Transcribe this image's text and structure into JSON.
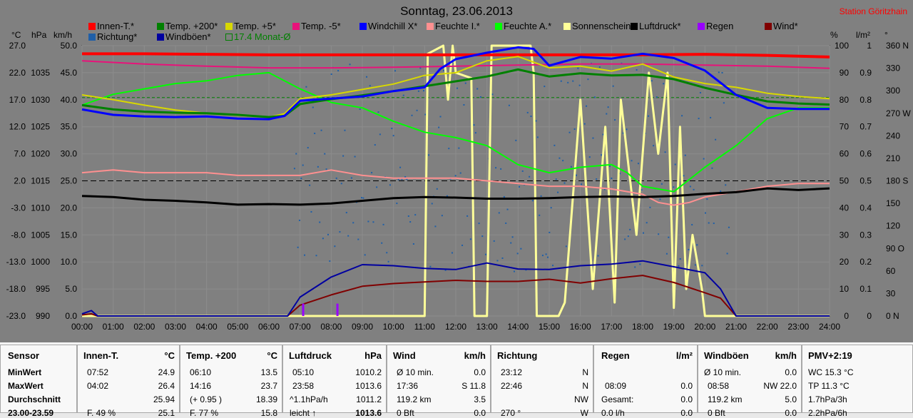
{
  "header": {
    "title": "Sonntag, 23.06.2013",
    "station": "Station Göritzhain"
  },
  "colors": {
    "innen": "#ff0000",
    "t200": "#008000",
    "t5": "#d8d800",
    "tm5": "#e8127a",
    "windchill": "#0000ff",
    "feuchte_i": "#ff9090",
    "feuchte_a": "#00ff00",
    "sonne": "#ffff99",
    "luftdruck": "#000000",
    "regen": "#9900ff",
    "wind": "#800000",
    "richtung": "#1f5fa8",
    "boeen": "#0000a0",
    "monat": "#008000"
  },
  "legend": [
    {
      "label": "Innen-T.*",
      "color": "#ff0000"
    },
    {
      "label": "Temp. +200*",
      "color": "#008000"
    },
    {
      "label": "Temp. +5*",
      "color": "#d8d800"
    },
    {
      "label": "Temp. -5*",
      "color": "#e8127a"
    },
    {
      "label": "Windchill X*",
      "color": "#0000ff"
    },
    {
      "label": "Feuchte I.*",
      "color": "#ff9090"
    },
    {
      "label": "Feuchte A.*",
      "color": "#00ff00"
    },
    {
      "label": "Sonnenschein",
      "color": "#ffff99"
    },
    {
      "label": "Luftdruck*",
      "color": "#000000"
    },
    {
      "label": "Regen",
      "color": "#9900ff"
    },
    {
      "label": "Wind*",
      "color": "#800000"
    },
    {
      "label": "Richtung*",
      "color": "#1f5fa8"
    },
    {
      "label": "Windböen*",
      "color": "#0000a0"
    },
    {
      "label": "17.4 Monat-Ø",
      "color": "#008000"
    }
  ],
  "units": {
    "celsius": "°C",
    "hpa": "hPa",
    "kmh": "km/h",
    "percent": "%",
    "lm2": "l/m²",
    "deg": "°"
  },
  "chart_data": {
    "type": "line",
    "x_ticks": [
      "00:00",
      "01:00",
      "02:00",
      "03:00",
      "04:00",
      "05:00",
      "06:00",
      "07:00",
      "08:00",
      "09:00",
      "10:00",
      "11:00",
      "12:00",
      "13:00",
      "14:00",
      "15:00",
      "16:00",
      "17:00",
      "18:00",
      "19:00",
      "20:00",
      "21:00",
      "22:00",
      "23:00",
      "24:00"
    ],
    "axes": {
      "temp": {
        "label": "°C",
        "ticks": [
          "27.0",
          "22.0",
          "17.0",
          "12.0",
          "7.0",
          "2.0",
          "-3.0",
          "-8.0",
          "-13.0",
          "-18.0",
          "-23.0"
        ],
        "range": [
          -23,
          27
        ]
      },
      "pressure": {
        "label": "hPa",
        "ticks": [
          "1035",
          "1030",
          "1025",
          "1020",
          "1015",
          "1010",
          "1005",
          "1000",
          "995",
          "990"
        ],
        "range": [
          990,
          1040
        ]
      },
      "wind": {
        "label": "km/h",
        "ticks": [
          "50.0",
          "45.0",
          "40.0",
          "35.0",
          "30.0",
          "25.0",
          "20.0",
          "15.0",
          "10.0",
          "5.0",
          "0.0"
        ],
        "range": [
          0,
          50
        ]
      },
      "humidity": {
        "label": "%",
        "ticks": [
          "100",
          "90",
          "80",
          "70",
          "60",
          "50",
          "40",
          "30",
          "20",
          "10",
          "0"
        ],
        "range": [
          0,
          100
        ]
      },
      "rain": {
        "label": "l/m²",
        "ticks": [
          "1",
          "0.9",
          "0.8",
          "0.7",
          "0.6",
          "0.5",
          "0.4",
          "0.3",
          "0.2",
          "0.1",
          "0"
        ],
        "range": [
          0,
          1
        ]
      },
      "direction": {
        "label": "°",
        "ticks": [
          "360 N",
          "330",
          "300",
          "270 W",
          "240",
          "210",
          "180 S",
          "150",
          "120",
          "90 O",
          "60",
          "30",
          "0 N"
        ],
        "range": [
          0,
          360
        ]
      }
    },
    "series": [
      {
        "name": "Innen-T.*",
        "axis": "temp",
        "x": [
          0,
          2,
          4,
          6,
          8,
          10,
          12,
          14,
          16,
          18,
          20,
          22,
          24
        ],
        "y": [
          25.5,
          25.5,
          25.4,
          25.3,
          25.3,
          25.3,
          25.3,
          25.3,
          25.3,
          25.3,
          25.4,
          25.2,
          24.9
        ]
      },
      {
        "name": "Temp. -5*",
        "axis": "temp",
        "x": [
          0,
          2,
          4,
          6,
          8,
          10,
          12,
          14,
          16,
          18,
          20,
          22,
          24
        ],
        "y": [
          24.2,
          23.6,
          23.2,
          22.9,
          22.9,
          23.0,
          23.2,
          23.4,
          23.6,
          23.6,
          23.4,
          23.2,
          22.8
        ]
      },
      {
        "name": "Temp. +200*",
        "axis": "temp",
        "x": [
          0,
          1,
          2,
          3,
          4,
          5,
          6,
          6.5,
          7,
          8,
          9,
          10,
          11,
          12,
          13,
          14,
          15,
          16,
          17,
          18,
          19,
          20,
          21,
          22,
          23,
          24
        ],
        "y": [
          16.0,
          15.2,
          14.8,
          14.6,
          14.5,
          14.2,
          13.8,
          14.0,
          16.2,
          17.1,
          17.8,
          18.6,
          19.5,
          20.4,
          21.3,
          22.6,
          21.3,
          21.9,
          21.5,
          21.6,
          20.8,
          19.2,
          17.9,
          16.7,
          16.3,
          16.1
        ]
      },
      {
        "name": "Temp. +5*",
        "axis": "temp",
        "x": [
          0,
          1,
          2,
          3,
          4,
          5,
          6,
          6.5,
          7,
          8,
          9,
          10,
          11,
          12,
          13,
          14,
          15,
          16,
          17,
          18,
          19,
          20,
          21,
          22,
          23,
          24
        ],
        "y": [
          17.9,
          17.0,
          16.0,
          15.1,
          14.5,
          14.1,
          13.8,
          14.4,
          17.2,
          17.9,
          18.9,
          19.9,
          21.5,
          22.0,
          24.2,
          25.0,
          22.9,
          23.2,
          22.3,
          23.6,
          21.2,
          20.0,
          19.3,
          18.2,
          17.6,
          17.2
        ]
      },
      {
        "name": "Windchill X*",
        "axis": "temp",
        "x": [
          0,
          1,
          2,
          3,
          4,
          5,
          6,
          6.5,
          7,
          8,
          9,
          10,
          11,
          11.5,
          12,
          13,
          14,
          14.5,
          15,
          16,
          17,
          18,
          19,
          20,
          21,
          22,
          23,
          24
        ],
        "y": [
          15.2,
          14.2,
          13.9,
          13.8,
          13.9,
          13.5,
          13.4,
          14.0,
          16.8,
          17.2,
          17.6,
          18.6,
          19.3,
          22.7,
          24.5,
          25.7,
          26.7,
          26.4,
          23.3,
          24.9,
          24.6,
          25.5,
          24.7,
          22.4,
          17.9,
          15.5,
          15.3,
          15.3
        ]
      },
      {
        "name": "Feuchte I.*",
        "axis": "humidity",
        "x": [
          0,
          1,
          2,
          3,
          4,
          5,
          6,
          7,
          8,
          9,
          10,
          11,
          12,
          13,
          14,
          15,
          16,
          17,
          18,
          18.5,
          19,
          19.5,
          20,
          21,
          22,
          23,
          24
        ],
        "y": [
          53,
          54,
          53,
          53,
          53,
          52,
          52,
          52,
          54,
          52,
          51,
          51,
          51,
          50,
          49,
          48,
          48,
          47,
          45,
          42,
          41,
          42,
          44,
          46,
          48,
          49,
          49
        ]
      },
      {
        "name": "Feuchte A.*",
        "axis": "humidity",
        "x": [
          0,
          1,
          2,
          3,
          4,
          5,
          6,
          7,
          8,
          9,
          10,
          11,
          12,
          13,
          14,
          15,
          16,
          17,
          17.5,
          18,
          18.5,
          19,
          20,
          21,
          22,
          23,
          24
        ],
        "y": [
          78,
          82,
          84,
          86,
          87,
          89,
          90,
          84,
          79,
          77,
          72,
          68,
          66,
          63,
          56,
          53,
          55,
          56,
          53,
          48,
          47,
          46,
          55,
          63,
          73,
          77,
          77
        ]
      },
      {
        "name": "Luftdruck*",
        "axis": "pressure",
        "x": [
          0,
          1,
          2,
          3,
          4,
          5,
          6,
          7,
          8,
          9,
          10,
          11,
          12,
          13,
          14,
          15,
          16,
          17,
          18,
          19,
          20,
          21,
          22,
          23,
          24
        ],
        "y": [
          1012.2,
          1012.0,
          1011.5,
          1011.3,
          1011.0,
          1010.6,
          1010.7,
          1010.6,
          1010.8,
          1011.3,
          1011.8,
          1012.0,
          1011.9,
          1011.7,
          1011.7,
          1011.8,
          1012.0,
          1012.1,
          1012.0,
          1012.2,
          1012.6,
          1012.9,
          1013.6,
          1013.3,
          1013.6
        ]
      },
      {
        "name": "Windböen*",
        "axis": "wind",
        "x": [
          0,
          0.3,
          0.5,
          6.6,
          7,
          8,
          9,
          10,
          11,
          12,
          13,
          14,
          15,
          16,
          17,
          18,
          19,
          20,
          20.5,
          21,
          22,
          24
        ],
        "y": [
          0.4,
          1.0,
          0,
          0,
          3.5,
          7.2,
          9.5,
          9.3,
          8.8,
          8.6,
          9.8,
          8.7,
          8.6,
          9.3,
          9.6,
          10.2,
          9.1,
          8.0,
          5.0,
          0,
          0,
          0
        ]
      },
      {
        "name": "Wind*",
        "axis": "wind",
        "x": [
          0,
          0.3,
          0.5,
          6.6,
          7,
          8,
          9,
          10,
          11,
          12,
          13,
          14,
          15,
          16,
          17,
          18,
          19,
          20,
          20.5,
          21,
          22,
          24
        ],
        "y": [
          0.2,
          0.4,
          0,
          0,
          2.0,
          3.9,
          5.5,
          6.0,
          6.3,
          6.6,
          6.4,
          6.4,
          6.8,
          6.1,
          6.9,
          7.5,
          6.2,
          4.3,
          3.3,
          0,
          0,
          0
        ]
      },
      {
        "name": "Sonnenschein",
        "axis": "rain",
        "x": [
          0,
          11,
          11.1,
          11.6,
          11.75,
          11.9,
          12.0,
          12.5,
          12.6,
          13.0,
          13.15,
          13.3,
          13.4,
          13.8,
          14.2,
          14.4,
          14.5,
          14.6,
          15.3,
          15.5,
          16.0,
          16.4,
          16.8,
          17.1,
          17.3,
          17.8,
          18.2,
          18.5,
          18.8,
          19.0,
          19.2,
          19.4,
          19.6,
          19.9,
          20.0,
          24
        ],
        "y": [
          0,
          0,
          0.97,
          1.0,
          0.8,
          1.0,
          0.9,
          0.88,
          0.0,
          0.0,
          1.0,
          1.0,
          1.0,
          1.0,
          1.0,
          1.0,
          0.9,
          0.0,
          0.0,
          0.05,
          0.8,
          0.1,
          0.7,
          0.05,
          0.8,
          0.3,
          0.9,
          0.6,
          0.9,
          0.03,
          0.7,
          0.1,
          0.3,
          0.1,
          0.0,
          0
        ]
      },
      {
        "name": "Regen",
        "axis": "rain",
        "x": [
          7.1,
          8.2
        ],
        "y": [
          0.03,
          0.03
        ]
      }
    ],
    "reference_lines": [
      {
        "name": "17.4 Monat-Ø",
        "axis": "temp",
        "value": 17.4
      },
      {
        "name": "25.0 wind",
        "axis": "wind",
        "value": 25.0
      }
    ],
    "direction_points": {
      "x_range": [
        6.8,
        20.8
      ],
      "count": 260
    }
  },
  "table": {
    "sensor": {
      "header": "Sensor",
      "rows": [
        "MinWert",
        "MaxWert",
        "Durchschnitt",
        "23.00-23.59"
      ]
    },
    "innen": {
      "header": "Innen-T.",
      "unit": "°C",
      "rows": [
        [
          "07:52",
          "24.9"
        ],
        [
          "04:02",
          "26.4"
        ],
        [
          "",
          "25.94"
        ],
        [
          "F. 49 %",
          "25.1"
        ]
      ]
    },
    "temp200": {
      "header": "Temp. +200",
      "unit": "°C",
      "rows": [
        [
          "06:10",
          "13.5"
        ],
        [
          "14:16",
          "23.7"
        ],
        [
          "(+ 0.95 )",
          "18.39"
        ],
        [
          "F. 77 %",
          "15.8"
        ]
      ]
    },
    "luftdruck": {
      "header": "Luftdruck",
      "unit": "hPa",
      "rows": [
        [
          "05:10",
          "1010.2"
        ],
        [
          "23:58",
          "1013.6"
        ],
        [
          "^1.1hPa/h",
          "1011.2"
        ],
        [
          "leicht ↑",
          "1013.6"
        ]
      ]
    },
    "wind": {
      "header": "Wind",
      "unit": "km/h",
      "rows": [
        [
          "Ø 10 min.",
          "0.0"
        ],
        [
          "17:36",
          "S 11.8"
        ],
        [
          "119.2 km",
          "3.5"
        ],
        [
          "0 Bft",
          "0.0"
        ]
      ]
    },
    "richtung": {
      "header": "Richtung",
      "rows": [
        [
          "23:12",
          "N"
        ],
        [
          "22:46",
          "N"
        ],
        [
          "",
          "NW"
        ],
        [
          "270 °",
          "W"
        ]
      ]
    },
    "regen": {
      "header": "Regen",
      "unit": "l/m²",
      "rows": [
        [
          "",
          ""
        ],
        [
          "08:09",
          "0.0"
        ],
        [
          "Gesamt:",
          "0.0"
        ],
        [
          "0.0 l/h",
          "0.0"
        ]
      ]
    },
    "boeen": {
      "header": "Windböen",
      "unit": "km/h",
      "rows": [
        [
          "Ø 10 min.",
          "0.0"
        ],
        [
          "08:58",
          "NW 22.0"
        ],
        [
          "119.2 km",
          "5.0"
        ],
        [
          "0 Bft",
          "0.0"
        ]
      ]
    },
    "pmv": {
      "header": "PMV+2:19",
      "rows": [
        "WC 15.3 °C",
        "TP 11.3 °C",
        "1.7hPa/3h",
        "2.2hPa/6h"
      ]
    }
  }
}
